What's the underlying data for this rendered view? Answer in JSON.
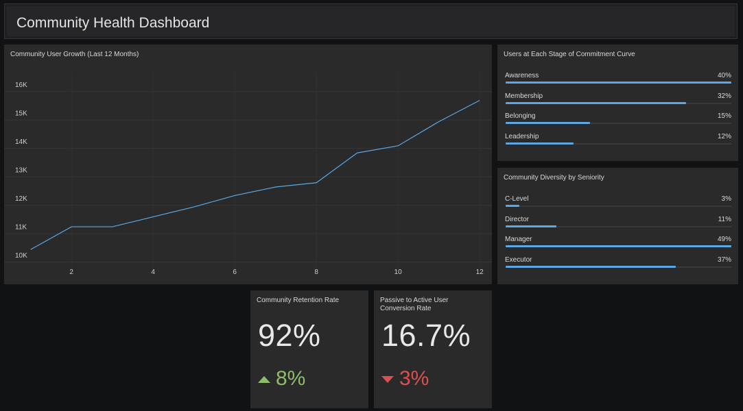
{
  "header": {
    "title": "Community Health Dashboard"
  },
  "growth_panel": {
    "title": "Community User Growth (Last 12 Months)"
  },
  "chart_data": {
    "type": "line",
    "title": "Community User Growth (Last 12 Months)",
    "x": [
      1,
      2,
      3,
      4,
      5,
      6,
      7,
      8,
      9,
      10,
      11,
      12
    ],
    "series": [
      {
        "values": [
          10200,
          11000,
          11000,
          11350,
          11700,
          12100,
          12400,
          12550,
          13600,
          13850,
          14700,
          15450
        ]
      }
    ],
    "xlim": [
      0.35,
      12.3
    ],
    "ylim": [
      9700,
      16450
    ],
    "x_ticks": [
      "2",
      "4",
      "6",
      "8",
      "10",
      "12"
    ],
    "y_ticks": [
      "10K",
      "11K",
      "12K",
      "13K",
      "14K",
      "15K",
      "16K"
    ],
    "grid": true,
    "line_color": "#5aa9e6"
  },
  "commitment_panel": {
    "title": "Users at Each Stage of Commitment Curve",
    "items": [
      {
        "label": "Awareness",
        "value": "40%",
        "fraction": 1.0
      },
      {
        "label": "Membership",
        "value": "32%",
        "fraction": 0.8
      },
      {
        "label": "Belonging",
        "value": "15%",
        "fraction": 0.375
      },
      {
        "label": "Leadership",
        "value": "12%",
        "fraction": 0.3
      }
    ]
  },
  "diversity_panel": {
    "title": "Community Diversity by Seniority",
    "items": [
      {
        "label": "C-Level",
        "value": "3%",
        "fraction": 0.061
      },
      {
        "label": "Director",
        "value": "11%",
        "fraction": 0.224
      },
      {
        "label": "Manager",
        "value": "49%",
        "fraction": 1.0
      },
      {
        "label": "Executor",
        "value": "37%",
        "fraction": 0.755
      }
    ]
  },
  "retention": {
    "title": "Community Retention Rate",
    "value": "92%",
    "delta": "8%",
    "delta_icon": "triangle-up-icon",
    "delta_color": "#8fbd6a"
  },
  "conversion": {
    "title": "Passive to Active User Conversion Rate",
    "value": "16.7%",
    "delta": "3%",
    "delta_icon": "triangle-down-icon",
    "delta_color": "#d8514f"
  },
  "colors": {
    "background": "#111214",
    "panel": "#2a2a2b",
    "accent": "#5aa9e6"
  }
}
